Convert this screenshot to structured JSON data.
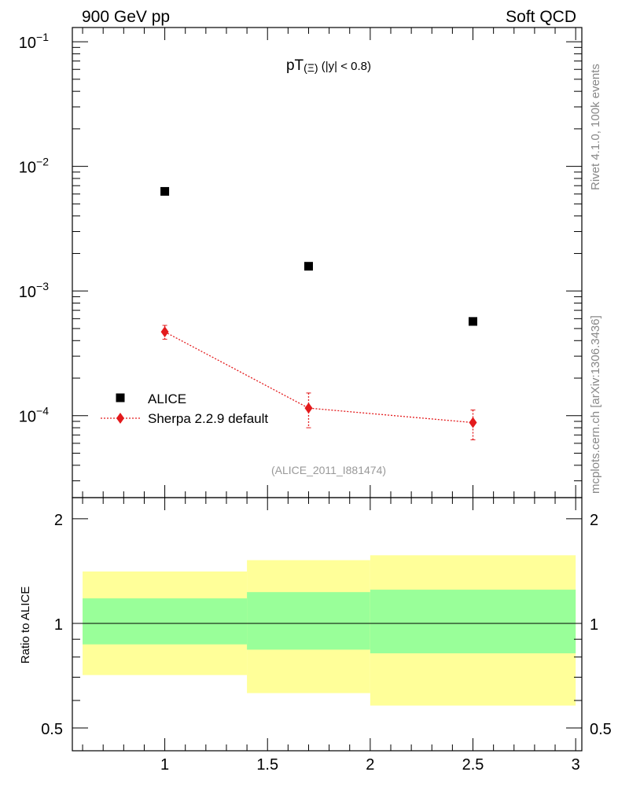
{
  "header": {
    "left": "900 GeV pp",
    "right": "Soft QCD"
  },
  "side": {
    "rivet": "Rivet 4.1.0,  100k events",
    "mcplots": "mcplots.cern.ch [arXiv:1306.3436]"
  },
  "chart_data": [
    {
      "type": "scatter",
      "title_main": "pT",
      "title_sub": "(Ξ)",
      "title_rest": " (|y| < 0.8)",
      "analysis_label": "(ALICE_2011_I881474)",
      "xscale": "linear",
      "yscale": "log",
      "xlim": [
        0.55,
        3.03
      ],
      "ylim": [
        2.2e-05,
        0.13
      ],
      "yticks": [
        {
          "value": 0.1,
          "base": "10",
          "exp": "−1"
        },
        {
          "value": 0.01,
          "base": "10",
          "exp": "−2"
        },
        {
          "value": 0.001,
          "base": "10",
          "exp": "−3"
        },
        {
          "value": 0.0001,
          "base": "10",
          "exp": "−4"
        }
      ],
      "legend_position": "lower-left",
      "series": [
        {
          "name": "ALICE",
          "marker": "square",
          "color": "#000000",
          "x": [
            1.0,
            1.7,
            2.5
          ],
          "y": [
            0.0063,
            0.00158,
            0.00057
          ]
        },
        {
          "name": "Sherpa 2.2.9 default",
          "marker": "diamond",
          "line": "dotted",
          "color": "#e31a1c",
          "x": [
            1.0,
            1.7,
            2.5
          ],
          "y": [
            0.00047,
            0.000115,
            8.8e-05
          ],
          "yerr_low": [
            6e-05,
            3.5e-05,
            2.4e-05
          ],
          "yerr_high": [
            6e-05,
            3.7e-05,
            2.3e-05
          ]
        }
      ]
    },
    {
      "type": "area",
      "ylabel": "Ratio to ALICE",
      "xscale": "linear",
      "yscale": "log",
      "xlim": [
        0.55,
        3.03
      ],
      "ylim": [
        0.43,
        2.3
      ],
      "xticks": [
        {
          "value": 1,
          "label": "1"
        },
        {
          "value": 1.5,
          "label": "1.5"
        },
        {
          "value": 2,
          "label": "2"
        },
        {
          "value": 2.5,
          "label": "2.5"
        },
        {
          "value": 3,
          "label": "3"
        }
      ],
      "yticks": [
        {
          "value": 2,
          "label": "2"
        },
        {
          "value": 1,
          "label": "1"
        },
        {
          "value": 0.5,
          "label": "0.5"
        }
      ],
      "reference_line": 1,
      "bands": [
        {
          "x": [
            0.6,
            1.4
          ],
          "inner": [
            0.87,
            1.18
          ],
          "outer": [
            0.71,
            1.41
          ]
        },
        {
          "x": [
            1.4,
            2.0
          ],
          "inner": [
            0.84,
            1.23
          ],
          "outer": [
            0.63,
            1.52
          ]
        },
        {
          "x": [
            2.0,
            3.0
          ],
          "inner": [
            0.82,
            1.25
          ],
          "outer": [
            0.58,
            1.57
          ]
        }
      ],
      "colors": {
        "inner": "#99ff99",
        "outer": "#ffff99"
      }
    }
  ]
}
